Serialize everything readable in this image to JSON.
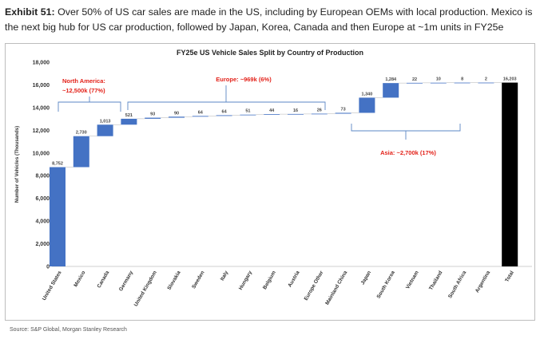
{
  "header": {
    "exhibit_label": "Exhibit 51:",
    "text": "Over 50% of US car sales are made in the US, including by European OEMs with local production. Mexico is the next big hub for US car production, followed by Japan, Korea, Canada and then Europe at ~1m units in FY25e"
  },
  "source": "Source: S&P Global, Morgan Stanley Research",
  "colors": {
    "bar": "#4472c4",
    "total": "#000000",
    "region_text": "#e32119",
    "brace": "#5b87c5"
  },
  "regions": [
    {
      "id": "north-america",
      "line1": "North America:",
      "line2": "~12,500k (77%)"
    },
    {
      "id": "europe",
      "line1": "Europe: ~969k (6%)"
    },
    {
      "id": "asia",
      "line1": "Asia: ~2,700k (17%)"
    }
  ],
  "chart_data": {
    "type": "bar",
    "subtype": "waterfall",
    "title": "FY25e US Vehicle Sales Split by Country of Production",
    "xlabel": "",
    "ylabel": "Number of Vehicles (Thousands)",
    "ylim": [
      0,
      18000
    ],
    "yticks": [
      0,
      2000,
      4000,
      6000,
      8000,
      10000,
      12000,
      14000,
      16000,
      18000
    ],
    "ytick_labels": [
      "0",
      "2,000",
      "4,000",
      "6,000",
      "8,000",
      "10,000",
      "12,000",
      "14,000",
      "16,000",
      "18,000"
    ],
    "categories": [
      "United States",
      "Mexico",
      "Canada",
      "Germany",
      "United Kingdom",
      "Slovakia",
      "Sweden",
      "Italy",
      "Hungary",
      "Belgium",
      "Austria",
      "Europe Other",
      "Mainland China",
      "Japan",
      "South Korea",
      "Vietnam",
      "Thailand",
      "South Africa",
      "Argentina",
      "Total"
    ],
    "values": [
      8752,
      2730,
      1013,
      521,
      93,
      90,
      64,
      64,
      51,
      44,
      16,
      26,
      73,
      1340,
      1284,
      22,
      10,
      8,
      2,
      16203
    ],
    "labels": [
      "8,752",
      "2,730",
      "1,013",
      "521",
      "93",
      "90",
      "64",
      "64",
      "51",
      "44",
      "16",
      "26",
      "73",
      "1,340",
      "1,284",
      "22",
      "10",
      "8",
      "2",
      "16,203"
    ],
    "total_index": 19,
    "grid": false,
    "legend": "none"
  }
}
